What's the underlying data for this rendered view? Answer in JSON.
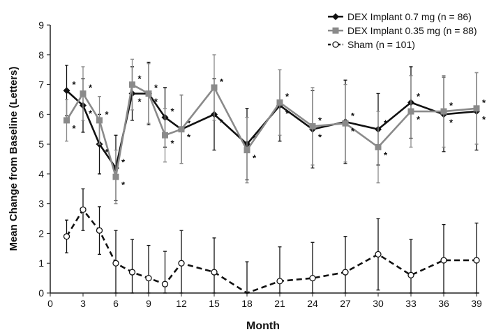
{
  "chart_data": {
    "type": "line",
    "xlabel": "Month",
    "ylabel": "Mean Change from Baseline (Letters)",
    "xlim": [
      0,
      39
    ],
    "ylim": [
      0,
      9
    ],
    "xticks": [
      0,
      3,
      6,
      9,
      12,
      15,
      18,
      21,
      24,
      27,
      30,
      33,
      36,
      39
    ],
    "yticks": [
      0,
      1,
      2,
      3,
      4,
      5,
      6,
      7,
      8,
      9
    ],
    "grid": false,
    "legend_position": "top-right",
    "x": [
      1.5,
      3,
      4.5,
      6,
      7.5,
      9,
      10.5,
      12,
      15,
      18,
      21,
      24,
      27,
      30,
      33,
      36,
      39
    ],
    "series": [
      {
        "name": "DEX Implant 0.7 mg (n = 86)",
        "color": "#111111",
        "marker": "diamond",
        "dash": "solid",
        "values": [
          6.8,
          6.3,
          5.0,
          4.2,
          6.7,
          6.7,
          5.9,
          5.5,
          6.0,
          5.0,
          6.3,
          5.5,
          5.75,
          5.5,
          6.4,
          6.0,
          6.1
        ],
        "error": [
          0.85,
          0.9,
          1.0,
          1.1,
          0.9,
          1.05,
          1.0,
          1.15,
          1.2,
          1.2,
          1.2,
          1.3,
          1.4,
          1.2,
          1.2,
          1.25,
          1.3
        ],
        "significant": [
          true,
          true,
          true,
          true,
          true,
          true,
          true,
          true,
          true,
          true,
          true,
          true,
          true,
          true,
          true,
          true,
          true
        ]
      },
      {
        "name": "DEX Implant 0.35 mg (n = 88)",
        "color": "#8a8a8a",
        "marker": "square",
        "dash": "solid",
        "values": [
          5.8,
          6.7,
          5.8,
          3.9,
          7.0,
          6.7,
          5.3,
          5.5,
          6.9,
          4.8,
          6.4,
          5.6,
          5.7,
          4.9,
          6.1,
          6.1,
          6.2
        ],
        "error": [
          0.7,
          0.9,
          0.8,
          0.9,
          0.85,
          1.0,
          0.9,
          1.15,
          1.1,
          1.1,
          1.1,
          1.3,
          1.3,
          1.2,
          1.2,
          1.2,
          1.2
        ],
        "significant": [
          true,
          true,
          true,
          true,
          true,
          true,
          true,
          true,
          true,
          true,
          true,
          true,
          true,
          true,
          true,
          true,
          true
        ]
      },
      {
        "name": "Sham (n = 101)",
        "color": "#111111",
        "marker": "open-circle",
        "dash": "dashed",
        "values": [
          1.9,
          2.8,
          2.1,
          1.0,
          0.7,
          0.5,
          0.3,
          1.0,
          0.7,
          -0.1,
          0.4,
          0.5,
          0.7,
          1.3,
          0.6,
          1.1,
          1.1
        ],
        "error": [
          0.55,
          0.7,
          0.8,
          1.1,
          1.1,
          1.1,
          1.1,
          1.1,
          1.15,
          1.15,
          1.15,
          1.2,
          1.2,
          1.2,
          1.2,
          1.2,
          1.25
        ]
      }
    ]
  }
}
